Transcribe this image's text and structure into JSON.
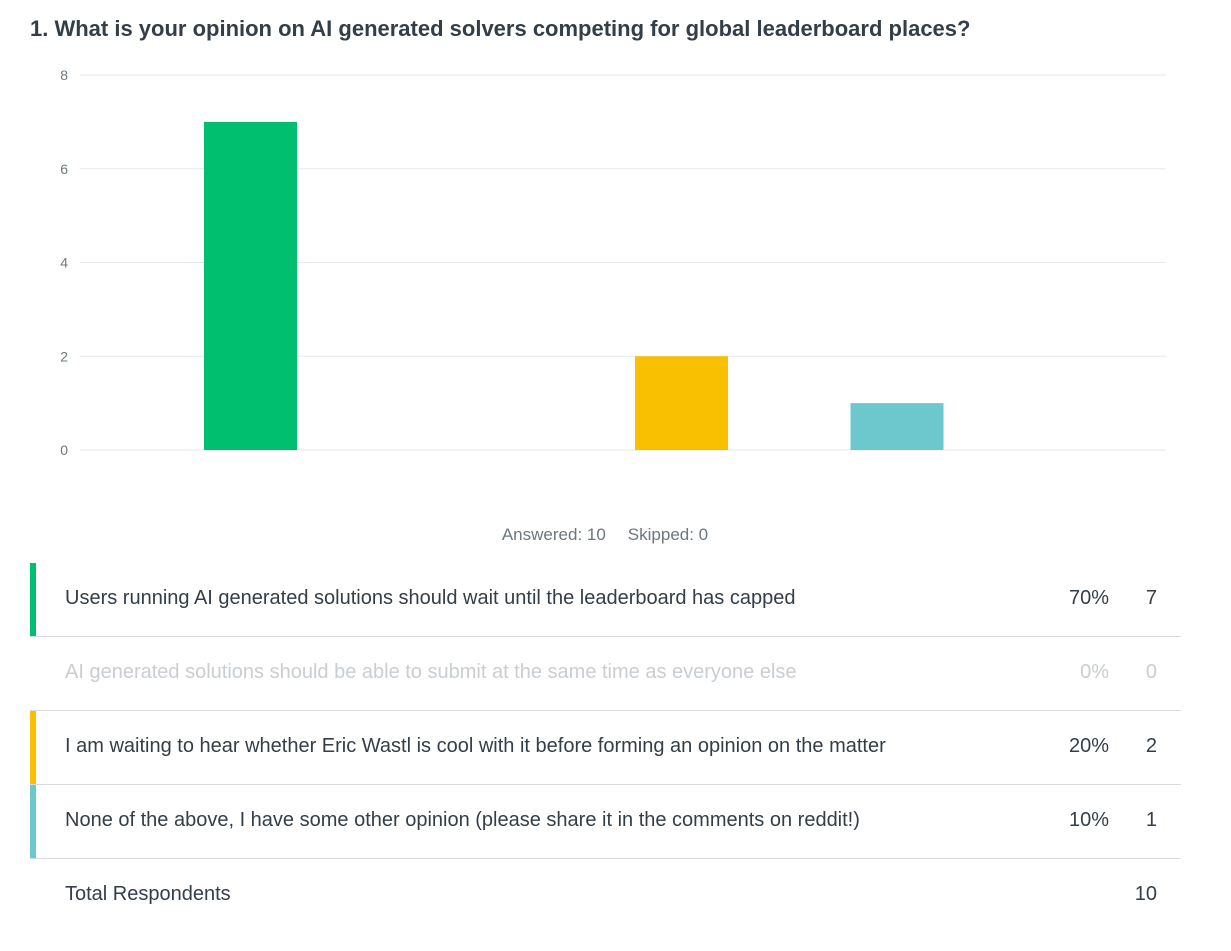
{
  "question": {
    "title": "1. What is your opinion on AI generated solvers competing for global leaderboard places?"
  },
  "summary": {
    "answered": "Answered: 10",
    "skipped": "Skipped: 0"
  },
  "colors": {
    "green": "#00bf6f",
    "gray": "#d0d5d9",
    "yellow": "#f8c000",
    "teal": "#6cc8cc",
    "gridline": "#e6e8ea",
    "text": "#333e48",
    "muted_text": "#c9ced2"
  },
  "chart_data": {
    "type": "bar",
    "categories": [
      "Users running AI generated solutions should wait until the leaderboard has capped",
      "AI generated solutions should be able to submit at the same time as everyone else",
      "I am waiting to hear whether Eric Wastl is cool with it before forming an opinion on the matter",
      "None of the above, I have some other opinion (please share it in the comments on reddit!)"
    ],
    "values": [
      7,
      0,
      2,
      1
    ],
    "colors": [
      "#00bf6f",
      "#d0d5d9",
      "#f8c000",
      "#6cc8cc"
    ],
    "ylim": [
      0,
      8
    ],
    "yticks": [
      "0",
      "2",
      "4",
      "6",
      "8"
    ],
    "grid": true,
    "legend": "none",
    "xlabel": "",
    "ylabel": ""
  },
  "answers": [
    {
      "choice": "Users running AI generated solutions should wait until the leaderboard has capped",
      "percent": "70%",
      "count": "7",
      "color": "#00bf6f"
    },
    {
      "choice": "AI generated solutions should be able to submit at the same time as everyone else",
      "percent": "0%",
      "count": "0",
      "color": ""
    },
    {
      "choice": "I am waiting to hear whether Eric Wastl is cool with it before forming an opinion on the matter",
      "percent": "20%",
      "count": "2",
      "color": "#f8c000"
    },
    {
      "choice": "None of the above, I have some other opinion (please share it in the comments on reddit!)",
      "percent": "10%",
      "count": "1",
      "color": "#6cc8cc"
    }
  ],
  "total": {
    "label": "Total Respondents",
    "value": "10"
  }
}
